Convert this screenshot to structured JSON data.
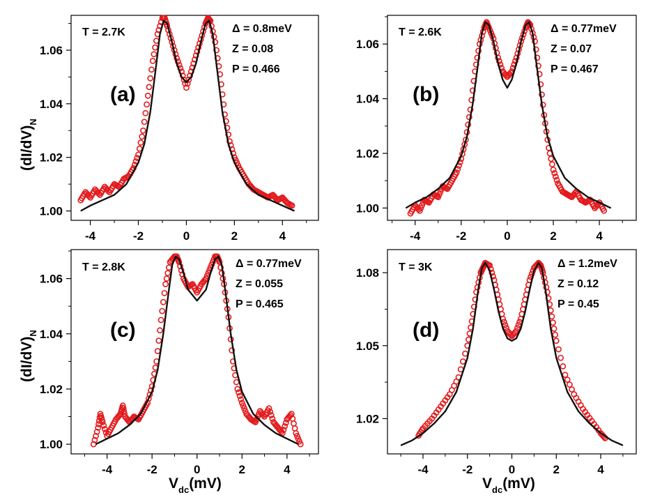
{
  "figure": {
    "ylabel": {
      "main": "(dI/dV)",
      "sub": "N"
    },
    "xlabel": {
      "main": "V",
      "sub": "dc",
      "unit": "(mV)"
    }
  },
  "colors": {
    "data": "#e31a1c",
    "fit": "#111111"
  },
  "chart_data": [
    {
      "id": "a",
      "type": "scatter",
      "panel_label": "(a)",
      "annotations": [
        "T = 2.7K",
        "Δ = 0.8meV",
        "Z = 0.08",
        "P = 0.466"
      ],
      "xlim": [
        -4.8,
        5.5
      ],
      "ylim": [
        0.9965,
        1.073
      ],
      "xticks": [
        -4,
        -2,
        0,
        2,
        4
      ],
      "yticks": [
        1.0,
        1.02,
        1.04,
        1.06
      ],
      "xtick_labels": [
        "-4",
        "-2",
        "0",
        "2",
        "4"
      ],
      "ytick_labels": [
        "1.00",
        "1.02",
        "1.04",
        "1.06"
      ],
      "grid": false,
      "series": [
        {
          "kind": "data_points",
          "x": [
            -4.4,
            -4.2,
            -4.0,
            -3.8,
            -3.6,
            -3.4,
            -3.2,
            -3.0,
            -2.8,
            -2.6,
            -2.4,
            -2.2,
            -2.0,
            -1.8,
            -1.6,
            -1.4,
            -1.2,
            -1.0,
            -0.9,
            -0.8,
            -0.6,
            -0.4,
            -0.2,
            0.0,
            0.2,
            0.4,
            0.6,
            0.8,
            0.9,
            1.0,
            1.2,
            1.4,
            1.6,
            1.8,
            2.0,
            2.2,
            2.4,
            2.6,
            2.8,
            3.0,
            3.2,
            3.4,
            3.6,
            3.8,
            4.0,
            4.2,
            4.4
          ],
          "y": [
            1.004,
            1.007,
            1.005,
            1.008,
            1.006,
            1.009,
            1.007,
            1.01,
            1.009,
            1.012,
            1.013,
            1.016,
            1.021,
            1.03,
            1.043,
            1.056,
            1.066,
            1.072,
            1.072,
            1.069,
            1.063,
            1.057,
            1.052,
            1.046,
            1.052,
            1.058,
            1.064,
            1.07,
            1.072,
            1.071,
            1.063,
            1.051,
            1.036,
            1.026,
            1.02,
            1.016,
            1.013,
            1.01,
            1.008,
            1.007,
            1.006,
            1.005,
            1.006,
            1.004,
            1.005,
            1.003,
            1.002
          ]
        },
        {
          "kind": "fit",
          "x": [
            -4.4,
            -4.0,
            -3.5,
            -3.0,
            -2.5,
            -2.0,
            -1.75,
            -1.5,
            -1.25,
            -1.1,
            -0.95,
            -0.8,
            -0.6,
            -0.4,
            -0.2,
            0.0,
            0.2,
            0.4,
            0.6,
            0.8,
            0.95,
            1.1,
            1.25,
            1.5,
            1.75,
            2.0,
            2.5,
            3.0,
            3.5,
            4.0,
            4.5
          ],
          "y": [
            1.0,
            1.002,
            1.004,
            1.006,
            1.01,
            1.018,
            1.025,
            1.037,
            1.055,
            1.066,
            1.071,
            1.07,
            1.063,
            1.055,
            1.05,
            1.048,
            1.05,
            1.055,
            1.063,
            1.07,
            1.071,
            1.066,
            1.055,
            1.037,
            1.025,
            1.018,
            1.01,
            1.006,
            1.004,
            1.002,
            1.0
          ]
        }
      ]
    },
    {
      "id": "b",
      "type": "scatter",
      "panel_label": "(b)",
      "annotations": [
        "T = 2.6K",
        "Δ = 0.77meV",
        "Z = 0.07",
        "P = 0.467"
      ],
      "xlim": [
        -5.2,
        5.6
      ],
      "ylim": [
        0.9955,
        1.0705
      ],
      "xticks": [
        -4,
        -2,
        0,
        2,
        4
      ],
      "yticks": [
        1.0,
        1.02,
        1.04,
        1.06
      ],
      "xtick_labels": [
        "-4",
        "-2",
        "0",
        "2",
        "4"
      ],
      "ytick_labels": [
        "1.00",
        "1.02",
        "1.04",
        "1.06"
      ],
      "grid": false,
      "series": [
        {
          "kind": "data_points",
          "x": [
            -4.2,
            -4.0,
            -3.8,
            -3.6,
            -3.4,
            -3.2,
            -3.0,
            -2.8,
            -2.6,
            -2.4,
            -2.2,
            -2.0,
            -1.8,
            -1.6,
            -1.4,
            -1.2,
            -1.0,
            -0.9,
            -0.8,
            -0.6,
            -0.4,
            -0.2,
            0.0,
            0.2,
            0.4,
            0.6,
            0.8,
            0.9,
            1.0,
            1.2,
            1.4,
            1.6,
            1.8,
            2.0,
            2.2,
            2.4,
            2.6,
            2.8,
            3.0,
            3.2,
            3.4,
            3.6,
            3.8,
            4.0,
            4.2
          ],
          "y": [
            0.998,
            1.001,
            0.999,
            1.003,
            1.002,
            1.005,
            1.004,
            1.008,
            1.007,
            1.01,
            1.013,
            1.018,
            1.025,
            1.036,
            1.05,
            1.06,
            1.066,
            1.068,
            1.066,
            1.062,
            1.055,
            1.05,
            1.048,
            1.05,
            1.055,
            1.061,
            1.066,
            1.068,
            1.067,
            1.061,
            1.049,
            1.034,
            1.022,
            1.014,
            1.009,
            1.006,
            1.005,
            1.004,
            1.006,
            1.003,
            1.002,
            1.003,
            1.0,
            1.002,
            0.999
          ]
        },
        {
          "kind": "fit",
          "x": [
            -4.4,
            -4.0,
            -3.5,
            -3.0,
            -2.5,
            -2.0,
            -1.75,
            -1.5,
            -1.25,
            -1.1,
            -0.95,
            -0.8,
            -0.6,
            -0.4,
            -0.2,
            0.0,
            0.2,
            0.4,
            0.6,
            0.8,
            0.95,
            1.1,
            1.25,
            1.5,
            1.75,
            2.0,
            2.5,
            3.0,
            3.5,
            4.0,
            4.5
          ],
          "y": [
            1.0,
            1.002,
            1.004,
            1.007,
            1.011,
            1.019,
            1.026,
            1.038,
            1.054,
            1.064,
            1.068,
            1.067,
            1.061,
            1.053,
            1.047,
            1.044,
            1.047,
            1.053,
            1.061,
            1.067,
            1.068,
            1.064,
            1.054,
            1.038,
            1.026,
            1.019,
            1.011,
            1.007,
            1.004,
            1.002,
            1.0
          ]
        }
      ]
    },
    {
      "id": "c",
      "type": "scatter",
      "panel_label": "(c)",
      "annotations": [
        "T = 2.8K",
        "Δ = 0.77meV",
        "Z = 0.055",
        "P = 0.465"
      ],
      "xlim": [
        -5.6,
        5.4
      ],
      "ylim": [
        0.9965,
        1.0705
      ],
      "xticks": [
        -4,
        -2,
        0,
        2,
        4
      ],
      "yticks": [
        1.0,
        1.02,
        1.04,
        1.06
      ],
      "xtick_labels": [
        "-4",
        "-2",
        "0",
        "2",
        "4"
      ],
      "ytick_labels": [
        "1.00",
        "1.02",
        "1.04",
        "1.06"
      ],
      "grid": false,
      "series": [
        {
          "kind": "data_points",
          "x": [
            -4.6,
            -4.4,
            -4.3,
            -4.2,
            -4.0,
            -3.8,
            -3.6,
            -3.4,
            -3.3,
            -3.2,
            -3.0,
            -2.8,
            -2.6,
            -2.4,
            -2.2,
            -2.0,
            -1.8,
            -1.6,
            -1.4,
            -1.2,
            -1.0,
            -0.9,
            -0.8,
            -0.6,
            -0.4,
            -0.2,
            0.0,
            0.2,
            0.4,
            0.6,
            0.8,
            0.9,
            1.0,
            1.2,
            1.4,
            1.6,
            1.8,
            2.0,
            2.2,
            2.4,
            2.6,
            2.8,
            3.0,
            3.2,
            3.4,
            3.6,
            3.8,
            4.0,
            4.2,
            4.4,
            4.6
          ],
          "y": [
            1.0,
            1.006,
            1.011,
            1.008,
            1.003,
            1.006,
            1.009,
            1.011,
            1.014,
            1.01,
            1.008,
            1.01,
            1.009,
            1.012,
            1.015,
            1.021,
            1.03,
            1.045,
            1.058,
            1.066,
            1.068,
            1.068,
            1.066,
            1.06,
            1.057,
            1.058,
            1.055,
            1.058,
            1.06,
            1.064,
            1.068,
            1.068,
            1.066,
            1.058,
            1.046,
            1.03,
            1.02,
            1.015,
            1.011,
            1.009,
            1.008,
            1.012,
            1.01,
            1.013,
            1.008,
            1.006,
            1.004,
            1.009,
            1.011,
            1.004,
            1.0
          ]
        },
        {
          "kind": "fit",
          "x": [
            -4.5,
            -4.0,
            -3.5,
            -3.0,
            -2.5,
            -2.0,
            -1.75,
            -1.5,
            -1.25,
            -1.1,
            -0.95,
            -0.8,
            -0.6,
            -0.4,
            -0.2,
            0.0,
            0.2,
            0.4,
            0.6,
            0.8,
            0.95,
            1.1,
            1.25,
            1.5,
            1.75,
            2.0,
            2.5,
            3.0,
            3.5,
            4.0,
            4.5
          ],
          "y": [
            1.0,
            1.002,
            1.004,
            1.007,
            1.011,
            1.019,
            1.027,
            1.04,
            1.056,
            1.065,
            1.068,
            1.067,
            1.062,
            1.056,
            1.054,
            1.052,
            1.054,
            1.056,
            1.062,
            1.067,
            1.068,
            1.065,
            1.056,
            1.04,
            1.027,
            1.019,
            1.011,
            1.007,
            1.004,
            1.002,
            1.0
          ]
        }
      ]
    },
    {
      "id": "d",
      "type": "scatter",
      "panel_label": "(d)",
      "annotations": [
        "T = 3K",
        "Δ = 1.2meV",
        "Z = 0.12",
        "P = 0.45"
      ],
      "xlim": [
        -5.6,
        5.6
      ],
      "ylim": [
        1.0055,
        1.0895
      ],
      "xticks": [
        -4,
        -2,
        0,
        2,
        4
      ],
      "yticks": [
        1.02,
        1.05,
        1.08
      ],
      "xtick_labels": [
        "-4",
        "-2",
        "0",
        "2",
        "4"
      ],
      "ytick_labels": [
        "1.02",
        "1.05",
        "1.08"
      ],
      "grid": false,
      "series": [
        {
          "kind": "data_points",
          "x": [
            -4.2,
            -4.0,
            -3.6,
            -3.2,
            -2.8,
            -2.4,
            -2.0,
            -1.8,
            -1.6,
            -1.4,
            -1.3,
            -1.2,
            -1.0,
            -0.8,
            -0.6,
            -0.4,
            -0.2,
            0.0,
            0.2,
            0.4,
            0.6,
            0.8,
            1.0,
            1.2,
            1.3,
            1.4,
            1.6,
            1.8,
            2.0,
            2.4,
            2.8,
            3.2,
            3.6,
            4.0,
            4.2
          ],
          "y": [
            1.013,
            1.016,
            1.02,
            1.025,
            1.03,
            1.037,
            1.05,
            1.06,
            1.072,
            1.08,
            1.082,
            1.084,
            1.083,
            1.077,
            1.069,
            1.061,
            1.056,
            1.054,
            1.056,
            1.061,
            1.069,
            1.077,
            1.082,
            1.084,
            1.083,
            1.08,
            1.072,
            1.062,
            1.052,
            1.038,
            1.03,
            1.024,
            1.019,
            1.014,
            1.012
          ]
        },
        {
          "kind": "fit",
          "x": [
            -5.0,
            -4.5,
            -4.0,
            -3.5,
            -3.0,
            -2.5,
            -2.0,
            -1.75,
            -1.5,
            -1.35,
            -1.2,
            -1.0,
            -0.8,
            -0.6,
            -0.4,
            -0.2,
            0.0,
            0.2,
            0.4,
            0.6,
            0.8,
            1.0,
            1.2,
            1.35,
            1.5,
            1.75,
            2.0,
            2.5,
            3.0,
            3.5,
            4.0,
            4.5,
            5.0
          ],
          "y": [
            1.009,
            1.011,
            1.014,
            1.018,
            1.023,
            1.031,
            1.045,
            1.057,
            1.074,
            1.082,
            1.084,
            1.081,
            1.073,
            1.064,
            1.057,
            1.053,
            1.052,
            1.053,
            1.057,
            1.064,
            1.073,
            1.081,
            1.084,
            1.082,
            1.074,
            1.057,
            1.045,
            1.031,
            1.023,
            1.018,
            1.014,
            1.011,
            1.009
          ]
        }
      ]
    }
  ]
}
